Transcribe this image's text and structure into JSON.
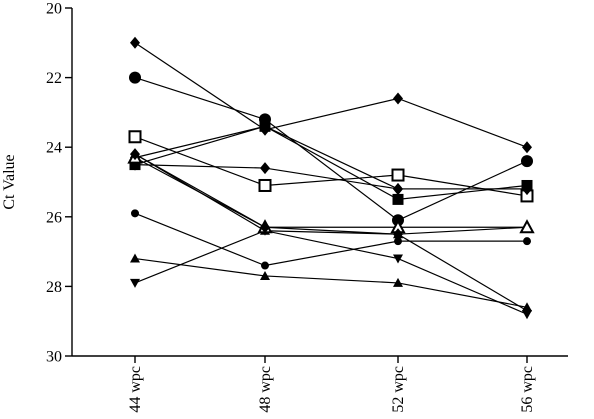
{
  "chart_data": {
    "type": "line",
    "title": "",
    "xlabel": "",
    "ylabel": "Ct Value",
    "categories": [
      "44 wpc",
      "48 wpc",
      "52 wpc",
      "56 wpc"
    ],
    "ylim": [
      20,
      30
    ],
    "y_inverted": true,
    "y_ticks": [
      20,
      22,
      24,
      26,
      28,
      30
    ],
    "grid": false,
    "legend": "none",
    "series": [
      {
        "marker": "diamond",
        "values": [
          21.0,
          23.5,
          22.6,
          24.0
        ]
      },
      {
        "marker": "circle-large",
        "values": [
          22.0,
          23.2,
          26.1,
          24.4
        ]
      },
      {
        "marker": "square-open",
        "values": [
          23.7,
          25.1,
          24.8,
          25.4
        ]
      },
      {
        "marker": "triangle-up",
        "values": [
          24.2,
          26.4,
          26.5,
          26.3
        ]
      },
      {
        "marker": "diamond",
        "values": [
          24.3,
          23.4,
          25.2,
          25.2
        ]
      },
      {
        "marker": "diamond",
        "values": [
          24.5,
          24.6,
          25.2,
          25.2
        ]
      },
      {
        "marker": "square",
        "values": [
          24.5,
          23.4,
          25.5,
          25.1
        ]
      },
      {
        "marker": "circle-small",
        "values": [
          25.9,
          27.4,
          26.7,
          26.7
        ]
      },
      {
        "marker": "triangle-up",
        "values": [
          27.2,
          27.7,
          27.9,
          28.6
        ]
      },
      {
        "marker": "triangle-down",
        "values": [
          27.9,
          26.4,
          27.2,
          28.8
        ]
      },
      {
        "marker": "triangle-open",
        "values": [
          24.3,
          26.3,
          26.3,
          26.3
        ]
      },
      {
        "marker": "diamond",
        "values": [
          24.2,
          26.3,
          26.5,
          28.7
        ]
      }
    ]
  }
}
